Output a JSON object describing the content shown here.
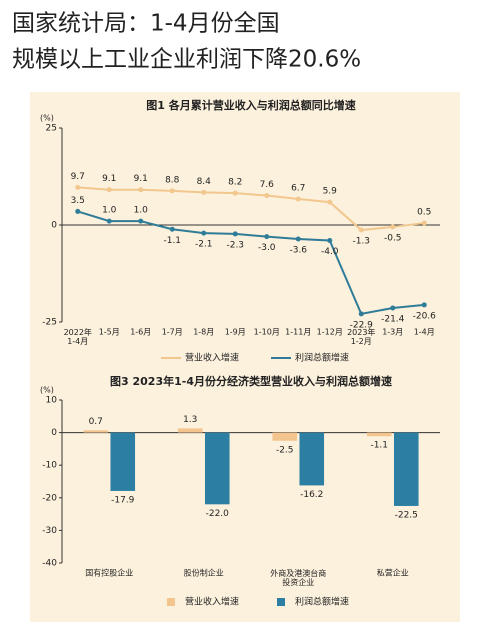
{
  "headline": [
    "国家统计局：1-4月份全国",
    "规模以上工业企业利润下降20.6%"
  ],
  "chart_data": [
    {
      "type": "line",
      "title": "图1  各月累计营业收入与利润总额同比增速",
      "y_label": "(%)",
      "categories": [
        "2022年\n1-4月",
        "1-5月",
        "1-6月",
        "1-7月",
        "1-8月",
        "1-9月",
        "1-10月",
        "1-11月",
        "1-12月",
        "2023年\n1-2月",
        "1-3月",
        "1-4月"
      ],
      "series": [
        {
          "name": "营业收入增速",
          "color": "#f2c78e",
          "values": [
            9.7,
            9.1,
            9.1,
            8.8,
            8.4,
            8.2,
            7.6,
            6.7,
            5.9,
            -1.3,
            -0.5,
            0.5
          ]
        },
        {
          "name": "利润总额增速",
          "color": "#2f7c98",
          "values": [
            3.5,
            1.0,
            1.0,
            -1.1,
            -2.1,
            -2.3,
            -3.0,
            -3.6,
            -4.0,
            -22.9,
            -21.4,
            -20.6
          ],
          "value_labels": [
            "3.5",
            "1.0",
            "1.0",
            "-1.1",
            "-2.1",
            "-2.3",
            "-3.0",
            "-3.6",
            "-4.0",
            "-22.9",
            "-21.4",
            "-20.6"
          ]
        }
      ],
      "ylim": [
        -25,
        25
      ],
      "yticks": [
        -25,
        0,
        25
      ],
      "legend": "bottom"
    },
    {
      "type": "bar",
      "title": "图3  2023年1-4月份分经济类型营业收入与利润总额增速",
      "y_label": "(%)",
      "categories": [
        "国有控股企业",
        "股份制企业",
        "外商及港澳台商\n投资企业",
        "私营企业"
      ],
      "series": [
        {
          "name": "营业收入增速",
          "color": "#f4c48e",
          "values": [
            0.7,
            1.3,
            -2.5,
            -1.1
          ]
        },
        {
          "name": "利润总额增速",
          "color": "#2c7fa2",
          "values": [
            -17.9,
            -22.0,
            -16.2,
            -22.5
          ],
          "value_labels": [
            "-17.9",
            "-22.0",
            "-16.2",
            "-22.5"
          ]
        }
      ],
      "ylim": [
        -40,
        10
      ],
      "yticks": [
        -40,
        -30,
        -20,
        -10,
        0,
        10
      ],
      "legend": "bottom"
    }
  ]
}
